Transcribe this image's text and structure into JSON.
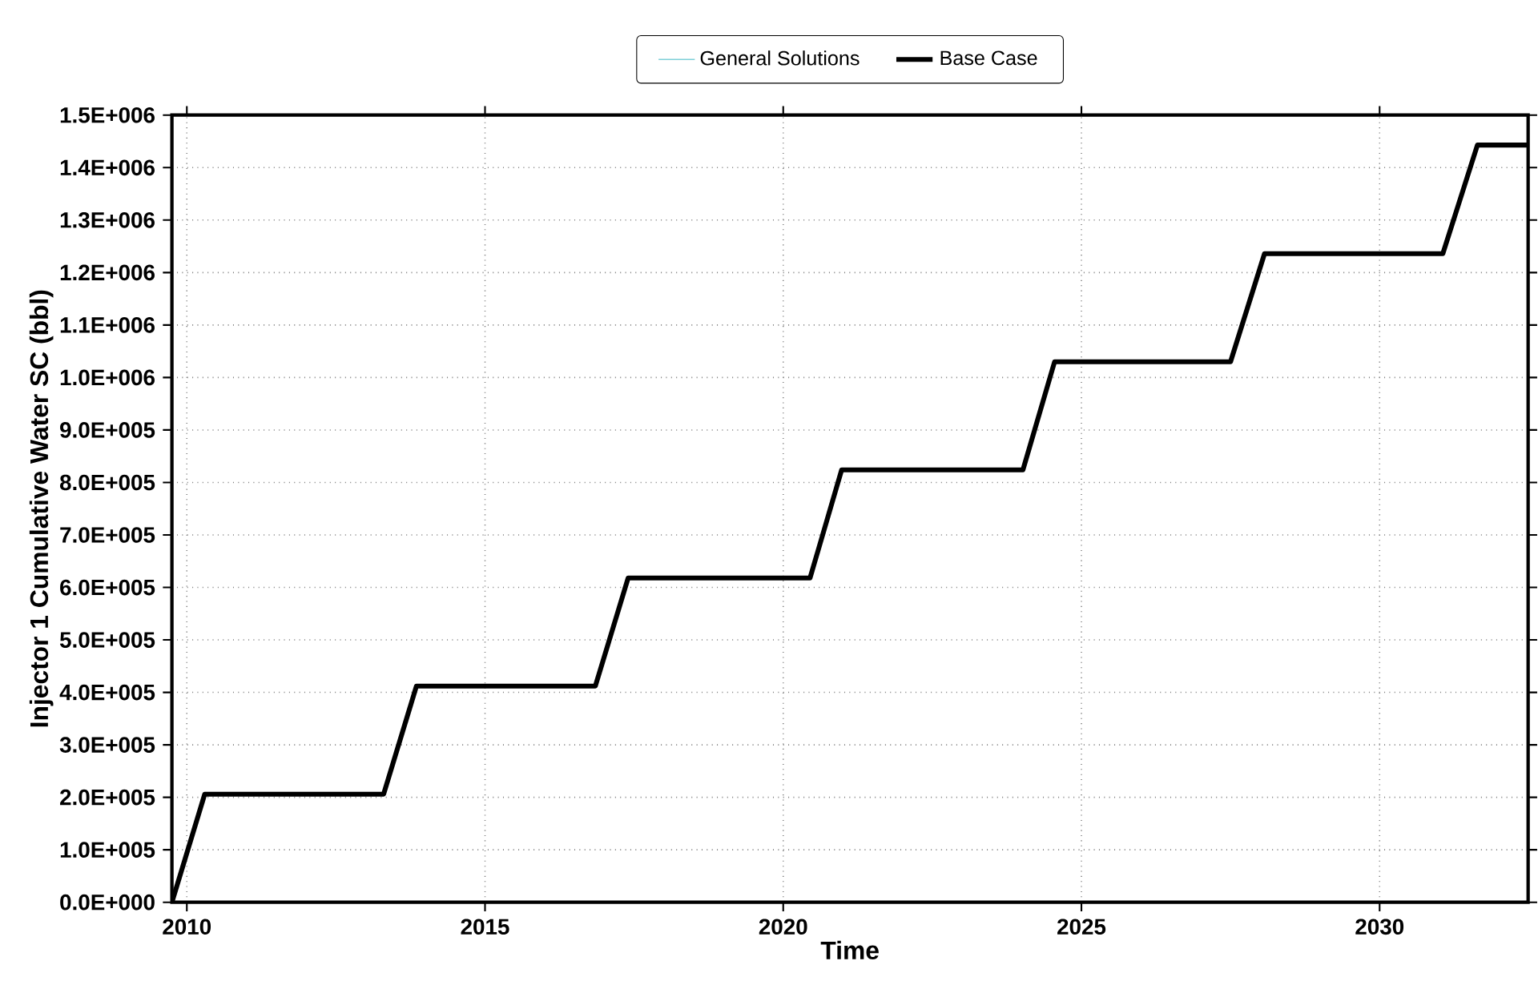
{
  "chart_data": {
    "type": "line",
    "xlabel": "Time",
    "ylabel": "Injector 1 Cumulative Water SC (bbl)",
    "x": [
      2009.75,
      2010.3,
      2013.3,
      2013.85,
      2016.85,
      2017.4,
      2020.45,
      2020.98,
      2024.02,
      2024.55,
      2027.5,
      2028.07,
      2031.06,
      2031.64,
      2032.49
    ],
    "series": [
      {
        "name": "General Solutions",
        "color": "#7fd0d8",
        "values": [
          null,
          null,
          null,
          null,
          null,
          null,
          null,
          null,
          null,
          null,
          null,
          null,
          null,
          null,
          null
        ]
      },
      {
        "name": "Base Case",
        "color": "#000000",
        "values": [
          0,
          206000,
          206000,
          412000,
          412000,
          618000,
          618000,
          824000,
          824000,
          1030000,
          1030000,
          1236000,
          1236000,
          1443000,
          1443000
        ]
      }
    ],
    "xlim": [
      2009.75,
      2032.49
    ],
    "xticks": [
      2010,
      2015,
      2020,
      2025,
      2030
    ],
    "ylim": [
      0,
      1500000
    ],
    "yticks": [
      {
        "value": 0,
        "label": "0.0E+000"
      },
      {
        "value": 100000,
        "label": "1.0E+005"
      },
      {
        "value": 200000,
        "label": "2.0E+005"
      },
      {
        "value": 300000,
        "label": "3.0E+005"
      },
      {
        "value": 400000,
        "label": "4.0E+005"
      },
      {
        "value": 500000,
        "label": "5.0E+005"
      },
      {
        "value": 600000,
        "label": "6.0E+005"
      },
      {
        "value": 700000,
        "label": "7.0E+005"
      },
      {
        "value": 800000,
        "label": "8.0E+005"
      },
      {
        "value": 900000,
        "label": "9.0E+005"
      },
      {
        "value": 1000000,
        "label": "1.0E+006"
      },
      {
        "value": 1100000,
        "label": "1.1E+006"
      },
      {
        "value": 1200000,
        "label": "1.2E+006"
      },
      {
        "value": 1300000,
        "label": "1.3E+006"
      },
      {
        "value": 1400000,
        "label": "1.4E+006"
      },
      {
        "value": 1500000,
        "label": "1.5E+006"
      }
    ],
    "grid": true,
    "legend": "top",
    "marker": "none",
    "line_style": "solid"
  }
}
